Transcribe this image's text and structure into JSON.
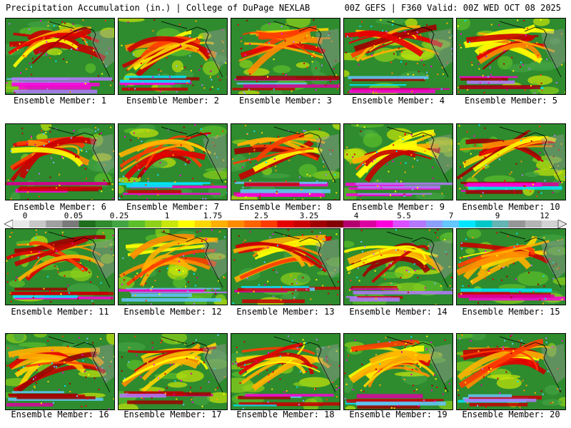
{
  "header": {
    "left": "Precipitation Accumulation (in.) | College of DuPage NEXLAB",
    "right": "00Z GEFS | F360 Valid: 00Z WED OCT 08 2025"
  },
  "members": [
    "Ensemble Member: 1",
    "Ensemble Member: 2",
    "Ensemble Member: 3",
    "Ensemble Member: 4",
    "Ensemble Member: 5",
    "Ensemble Member: 6",
    "Ensemble Member: 7",
    "Ensemble Member: 8",
    "Ensemble Member: 9",
    "Ensemble Member: 10",
    "Ensemble Member: 11",
    "Ensemble Member: 12",
    "Ensemble Member: 13",
    "Ensemble Member: 14",
    "Ensemble Member: 15",
    "Ensemble Member: 16",
    "Ensemble Member: 17",
    "Ensemble Member: 18",
    "Ensemble Member: 19",
    "Ensemble Member: 20"
  ],
  "colorbar": {
    "tick_labels": [
      "0",
      "0.05",
      "0.25",
      "1",
      "1.75",
      "2.5",
      "3.25",
      "4",
      "5.5",
      "7",
      "9",
      "12"
    ],
    "colors": [
      "#e8e8e8",
      "#c8c8c8",
      "#a0a0a0",
      "#7a7a7a",
      "#1f6e1f",
      "#2e8b2e",
      "#43a443",
      "#5cbf2a",
      "#8fd11a",
      "#c8e60a",
      "#ffff00",
      "#ffd700",
      "#ffb000",
      "#ff8c00",
      "#ff6400",
      "#ff3c00",
      "#e60000",
      "#c80000",
      "#a00000",
      "#820000",
      "#b4006e",
      "#dc00a0",
      "#ff00dc",
      "#dc50ff",
      "#b478ff",
      "#8ca0ff",
      "#64c8ff",
      "#00e6ff",
      "#00c8c8",
      "#64b4b4",
      "#969696",
      "#b4b4b4",
      "#d2d2d2"
    ]
  }
}
